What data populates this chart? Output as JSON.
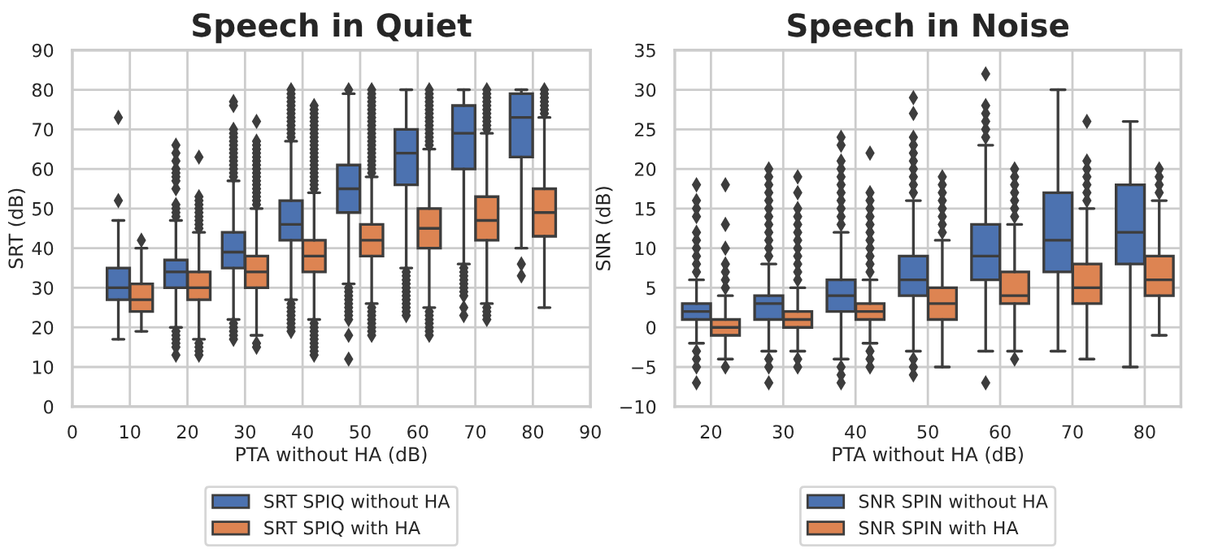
{
  "chart_data": [
    {
      "type": "box",
      "title": "Speech in Quiet",
      "xlabel": "PTA without HA (dB)",
      "ylabel": "SRT (dB)",
      "x": [
        10,
        20,
        30,
        40,
        50,
        60,
        70,
        80
      ],
      "xlim": [
        0,
        90
      ],
      "xticks": [
        0,
        10,
        20,
        30,
        40,
        50,
        60,
        70,
        80,
        90
      ],
      "ylim": [
        0,
        90
      ],
      "yticks": [
        0,
        10,
        20,
        30,
        40,
        50,
        60,
        70,
        80,
        90
      ],
      "grid": true,
      "legend": "bottom",
      "marker": "diamond",
      "series": [
        {
          "name": "SRT SPIQ without HA",
          "color": "#4c72b0",
          "boxes": [
            {
              "low": 17,
              "q1": 27,
              "median": 30,
              "q3": 35,
              "high": 47,
              "outliers": [
                52,
                73
              ]
            },
            {
              "low": 20,
              "q1": 30,
              "median": 34,
              "q3": 37,
              "high": 47,
              "outliers": [
                13,
                15,
                16,
                17,
                18,
                19,
                48,
                49,
                50,
                51,
                55,
                57,
                58,
                59,
                60,
                62,
                64,
                66
              ]
            },
            {
              "low": 22,
              "q1": 35,
              "median": 39,
              "q3": 44,
              "high": 57,
              "outliers": [
                17,
                18,
                19,
                20,
                21,
                58,
                59,
                60,
                61,
                62,
                63,
                64,
                65,
                66,
                67,
                68,
                69,
                70,
                76,
                77
              ]
            },
            {
              "low": 27,
              "q1": 42,
              "median": 46,
              "q3": 52,
              "high": 67,
              "outliers": [
                19,
                20,
                21,
                22,
                23,
                24,
                25,
                26,
                68,
                69,
                70,
                71,
                72,
                73,
                74,
                75,
                76,
                77,
                78,
                79,
                80
              ]
            },
            {
              "low": 31,
              "q1": 49,
              "median": 55,
              "q3": 61,
              "high": 79,
              "outliers": [
                12,
                18,
                22,
                23,
                24,
                25,
                26,
                27,
                28,
                29,
                30,
                80
              ]
            },
            {
              "low": 35,
              "q1": 56,
              "median": 64,
              "q3": 70,
              "high": 80,
              "outliers": [
                23,
                24,
                25,
                26,
                27,
                28,
                29,
                30,
                31,
                32,
                33,
                34
              ]
            },
            {
              "low": 36,
              "q1": 60,
              "median": 69,
              "q3": 76,
              "high": 80,
              "outliers": [
                23,
                25,
                28,
                29,
                30,
                31,
                32,
                33,
                34,
                35
              ]
            },
            {
              "low": 40,
              "q1": 63,
              "median": 73,
              "q3": 79,
              "high": 80,
              "outliers": [
                33,
                36
              ]
            }
          ]
        },
        {
          "name": "SRT SPIQ with HA",
          "color": "#dd8452",
          "boxes": [
            {
              "low": 19,
              "q1": 24,
              "median": 27,
              "q3": 31,
              "high": 40,
              "outliers": [
                42
              ]
            },
            {
              "low": 17,
              "q1": 27,
              "median": 30,
              "q3": 34,
              "high": 44,
              "outliers": [
                13,
                14,
                15,
                16,
                45,
                46,
                47,
                48,
                49,
                50,
                51,
                52,
                53,
                63
              ]
            },
            {
              "low": 18,
              "q1": 30,
              "median": 34,
              "q3": 38,
              "high": 50,
              "outliers": [
                15,
                16,
                51,
                52,
                53,
                54,
                55,
                56,
                57,
                58,
                59,
                60,
                61,
                62,
                63,
                64,
                65,
                66,
                67,
                72
              ]
            },
            {
              "low": 22,
              "q1": 34,
              "median": 38,
              "q3": 42,
              "high": 54,
              "outliers": [
                13,
                14,
                15,
                16,
                17,
                18,
                19,
                20,
                21,
                55,
                56,
                57,
                58,
                59,
                60,
                61,
                62,
                63,
                64,
                65,
                66,
                67,
                68,
                69,
                70,
                71,
                72,
                73,
                74,
                75,
                76
              ]
            },
            {
              "low": 26,
              "q1": 38,
              "median": 42,
              "q3": 46,
              "high": 58,
              "outliers": [
                18,
                19,
                20,
                21,
                22,
                23,
                24,
                25,
                59,
                60,
                61,
                62,
                63,
                64,
                65,
                66,
                67,
                68,
                69,
                70,
                71,
                72,
                73,
                74,
                75,
                76,
                77,
                78,
                79,
                80
              ]
            },
            {
              "low": 25,
              "q1": 40,
              "median": 45,
              "q3": 50,
              "high": 65,
              "outliers": [
                18,
                19,
                20,
                21,
                22,
                23,
                24,
                66,
                67,
                68,
                69,
                70,
                71,
                72,
                73,
                74,
                75,
                76,
                77,
                78,
                79,
                80
              ]
            },
            {
              "low": 26,
              "q1": 42,
              "median": 47,
              "q3": 53,
              "high": 69,
              "outliers": [
                22,
                23,
                24,
                25,
                70,
                71,
                72,
                73,
                74,
                75,
                76,
                77,
                78,
                79,
                80
              ]
            },
            {
              "low": 25,
              "q1": 43,
              "median": 49,
              "q3": 55,
              "high": 73,
              "outliers": [
                74,
                75,
                76,
                77,
                78,
                79,
                80
              ]
            }
          ]
        }
      ]
    },
    {
      "type": "box",
      "title": "Speech in Noise",
      "xlabel": "PTA without HA (dB)",
      "ylabel": "SNR (dB)",
      "categories": [
        "20",
        "30",
        "40",
        "50",
        "60",
        "70",
        "80"
      ],
      "ylim": [
        -10,
        35
      ],
      "yticks": [
        {
          "value": -10,
          "label": "−10"
        },
        {
          "value": -5,
          "label": "−5"
        },
        0,
        5,
        10,
        15,
        20,
        25,
        30,
        35
      ],
      "grid": true,
      "legend": "bottom",
      "marker": "diamond",
      "series": [
        {
          "name": "SNR SPIN without HA",
          "color": "#4c72b0",
          "boxes": [
            {
              "low": -2,
              "q1": 1,
              "median": 2,
              "q3": 3,
              "high": 6,
              "outliers": [
                -7,
                -5,
                -4,
                -3,
                7,
                8,
                9,
                10,
                11,
                12,
                14,
                15,
                16,
                18
              ]
            },
            {
              "low": -3,
              "q1": 1,
              "median": 3,
              "q3": 4,
              "high": 8,
              "outliers": [
                -7,
                -5,
                -4,
                9,
                10,
                11,
                12,
                13,
                14,
                15,
                16,
                17,
                18,
                19,
                20
              ]
            },
            {
              "low": -4,
              "q1": 2,
              "median": 4,
              "q3": 6,
              "high": 12,
              "outliers": [
                -7,
                -6,
                -5,
                13,
                14,
                15,
                16,
                17,
                18,
                19,
                20,
                21,
                23,
                24
              ]
            },
            {
              "low": -3,
              "q1": 4,
              "median": 6,
              "q3": 9,
              "high": 16,
              "outliers": [
                -6,
                -5,
                -4,
                17,
                18,
                19,
                20,
                21,
                22,
                23,
                24,
                27,
                29
              ]
            },
            {
              "low": -3,
              "q1": 6,
              "median": 9,
              "q3": 13,
              "high": 23,
              "outliers": [
                -7,
                24,
                25,
                26,
                27,
                28,
                32
              ]
            },
            {
              "low": -3,
              "q1": 7,
              "median": 11,
              "q3": 17,
              "high": 30
            },
            {
              "low": -5,
              "q1": 8,
              "median": 12,
              "q3": 18,
              "high": 26
            }
          ]
        },
        {
          "name": "SNR SPIN with HA",
          "color": "#dd8452",
          "boxes": [
            {
              "low": -4,
              "q1": -1,
              "median": 0,
              "q3": 1,
              "high": 4,
              "outliers": [
                -5,
                5,
                6,
                7,
                8,
                10,
                13,
                18
              ]
            },
            {
              "low": -3,
              "q1": 0,
              "median": 1,
              "q3": 2,
              "high": 5,
              "outliers": [
                -5,
                -4,
                6,
                7,
                8,
                9,
                10,
                11,
                12,
                13,
                14,
                15,
                17,
                19
              ]
            },
            {
              "low": -2,
              "q1": 1,
              "median": 2,
              "q3": 3,
              "high": 6,
              "outliers": [
                -5,
                -4,
                -3,
                7,
                8,
                9,
                10,
                11,
                12,
                13,
                14,
                15,
                16,
                17,
                22
              ]
            },
            {
              "low": -5,
              "q1": 1,
              "median": 3,
              "q3": 5,
              "high": 11,
              "outliers": [
                12,
                13,
                14,
                15,
                16,
                17,
                18,
                19
              ]
            },
            {
              "low": -3,
              "q1": 3,
              "median": 4,
              "q3": 7,
              "high": 13,
              "outliers": [
                -4,
                14,
                15,
                16,
                17,
                18,
                19,
                20
              ]
            },
            {
              "low": -4,
              "q1": 3,
              "median": 5,
              "q3": 8,
              "high": 15,
              "outliers": [
                16,
                17,
                18,
                19,
                20,
                21,
                26
              ]
            },
            {
              "low": -1,
              "q1": 4,
              "median": 6,
              "q3": 9,
              "high": 16,
              "outliers": [
                17,
                18,
                19,
                20
              ]
            }
          ]
        }
      ]
    }
  ]
}
